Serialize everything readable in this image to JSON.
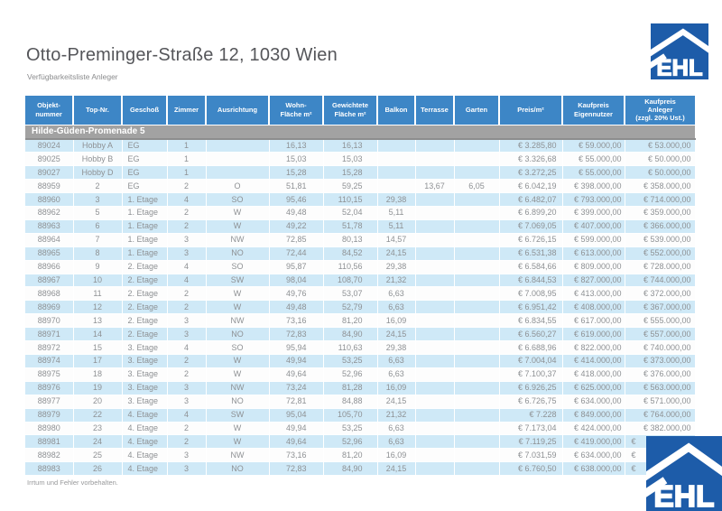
{
  "page": {
    "title": "Otto-Preminger-Straße 12, 1030 Wien",
    "subtitle": "Verfügbarkeitsliste Anleger",
    "footer_note": "Irrtum und Fehler vorbehalten.",
    "logo_text": "EHL"
  },
  "colors": {
    "header_blue": "#3d86c6",
    "row_stripe_blue": "#cfe9f7",
    "section_band_gray": "#a2a2a2",
    "logo_blue": "#1d5ca9",
    "text_gray": "#8e9194"
  },
  "table": {
    "section_header": "Hilde-Güden-Promenade 5",
    "columns": [
      "Objekt-\nnummer",
      "Top-Nr.",
      "Geschoß",
      "Zimmer",
      "Ausrichtung",
      "Wohn-\nFläche m²",
      "Gewichtete\nFläche m²",
      "Balkon",
      "Terrasse",
      "Garten",
      "Preis/m²",
      "Kaufpreis\nEigennutzer",
      "Kaufpreis\nAnleger\n(zzgl. 20% Ust.)"
    ],
    "rows": [
      [
        "89024",
        "Hobby A",
        "EG",
        "1",
        "",
        "16,13",
        "16,13",
        "",
        "",
        "",
        "€ 3.285,80",
        "€ 59.000,00",
        "€ 53.000,00"
      ],
      [
        "89025",
        "Hobby B",
        "EG",
        "1",
        "",
        "15,03",
        "15,03",
        "",
        "",
        "",
        "€ 3.326,68",
        "€ 55.000,00",
        "€ 50.000,00"
      ],
      [
        "89027",
        "Hobby D",
        "EG",
        "1",
        "",
        "15,28",
        "15,28",
        "",
        "",
        "",
        "€ 3.272,25",
        "€ 55.000,00",
        "€ 50.000,00"
      ],
      [
        "88959",
        "2",
        "EG",
        "2",
        "O",
        "51,81",
        "59,25",
        "",
        "13,67",
        "6,05",
        "€ 6.042,19",
        "€ 398.000,00",
        "€ 358.000,00"
      ],
      [
        "88960",
        "3",
        "1. Etage",
        "4",
        "SO",
        "95,46",
        "110,15",
        "29,38",
        "",
        "",
        "€ 6.482,07",
        "€ 793.000,00",
        "€ 714.000,00"
      ],
      [
        "88962",
        "5",
        "1. Etage",
        "2",
        "W",
        "49,48",
        "52,04",
        "5,11",
        "",
        "",
        "€ 6.899,20",
        "€ 399.000,00",
        "€ 359.000,00"
      ],
      [
        "88963",
        "6",
        "1. Etage",
        "2",
        "W",
        "49,22",
        "51,78",
        "5,11",
        "",
        "",
        "€ 7.069,05",
        "€ 407.000,00",
        "€ 366.000,00"
      ],
      [
        "88964",
        "7",
        "1. Etage",
        "3",
        "NW",
        "72,85",
        "80,13",
        "14,57",
        "",
        "",
        "€ 6.726,15",
        "€ 599.000,00",
        "€ 539.000,00"
      ],
      [
        "88965",
        "8",
        "1. Etage",
        "3",
        "NO",
        "72,44",
        "84,52",
        "24,15",
        "",
        "",
        "€ 6.531,38",
        "€ 613.000,00",
        "€ 552.000,00"
      ],
      [
        "88966",
        "9",
        "2. Etage",
        "4",
        "SO",
        "95,87",
        "110,56",
        "29,38",
        "",
        "",
        "€ 6.584,66",
        "€ 809.000,00",
        "€ 728.000,00"
      ],
      [
        "88967",
        "10",
        "2. Etage",
        "4",
        "SW",
        "98,04",
        "108,70",
        "21,32",
        "",
        "",
        "€ 6.844,53",
        "€ 827.000,00",
        "€ 744.000,00"
      ],
      [
        "88968",
        "11",
        "2. Etage",
        "2",
        "W",
        "49,76",
        "53,07",
        "6,63",
        "",
        "",
        "€ 7.008,95",
        "€ 413.000,00",
        "€ 372.000,00"
      ],
      [
        "88969",
        "12",
        "2. Etage",
        "2",
        "W",
        "49,48",
        "52,79",
        "6,63",
        "",
        "",
        "€ 6.951,42",
        "€ 408.000,00",
        "€ 367.000,00"
      ],
      [
        "88970",
        "13",
        "2. Etage",
        "3",
        "NW",
        "73,16",
        "81,20",
        "16,09",
        "",
        "",
        "€ 6.834,55",
        "€ 617.000,00",
        "€ 555.000,00"
      ],
      [
        "88971",
        "14",
        "2. Etage",
        "3",
        "NO",
        "72,83",
        "84,90",
        "24,15",
        "",
        "",
        "€ 6.560,27",
        "€ 619.000,00",
        "€ 557.000,00"
      ],
      [
        "88972",
        "15",
        "3. Etage",
        "4",
        "SO",
        "95,94",
        "110,63",
        "29,38",
        "",
        "",
        "€ 6.688,96",
        "€ 822.000,00",
        "€ 740.000,00"
      ],
      [
        "88974",
        "17",
        "3. Etage",
        "2",
        "W",
        "49,94",
        "53,25",
        "6,63",
        "",
        "",
        "€ 7.004,04",
        "€ 414.000,00",
        "€ 373.000,00"
      ],
      [
        "88975",
        "18",
        "3. Etage",
        "2",
        "W",
        "49,64",
        "52,96",
        "6,63",
        "",
        "",
        "€ 7.100,37",
        "€ 418.000,00",
        "€ 376.000,00"
      ],
      [
        "88976",
        "19",
        "3. Etage",
        "3",
        "NW",
        "73,24",
        "81,28",
        "16,09",
        "",
        "",
        "€ 6.926,25",
        "€ 625.000,00",
        "€ 563.000,00"
      ],
      [
        "88977",
        "20",
        "3. Etage",
        "3",
        "NO",
        "72,81",
        "84,88",
        "24,15",
        "",
        "",
        "€ 6.726,75",
        "€ 634.000,00",
        "€ 571.000,00"
      ],
      [
        "88979",
        "22",
        "4. Etage",
        "4",
        "SW",
        "95,04",
        "105,70",
        "21,32",
        "",
        "",
        "€ 7.228",
        "€ 849.000,00",
        "€ 764.000,00"
      ],
      [
        "88980",
        "23",
        "4. Etage",
        "2",
        "W",
        "49,94",
        "53,25",
        "6,63",
        "",
        "",
        "€ 7.173,04",
        "€ 424.000,00",
        "€ 382.000,00"
      ],
      [
        "88981",
        "24",
        "4. Etage",
        "2",
        "W",
        "49,64",
        "52,96",
        "6,63",
        "",
        "",
        "€ 7.119,25",
        "€ 419.000,00",
        "€"
      ],
      [
        "88982",
        "25",
        "4. Etage",
        "3",
        "NW",
        "73,16",
        "81,20",
        "16,09",
        "",
        "",
        "€ 7.031,59",
        "€ 634.000,00",
        "€"
      ],
      [
        "88983",
        "26",
        "4. Etage",
        "3",
        "NO",
        "72,83",
        "84,90",
        "24,15",
        "",
        "",
        "€ 6.760,50",
        "€ 638.000,00",
        "€"
      ]
    ]
  }
}
